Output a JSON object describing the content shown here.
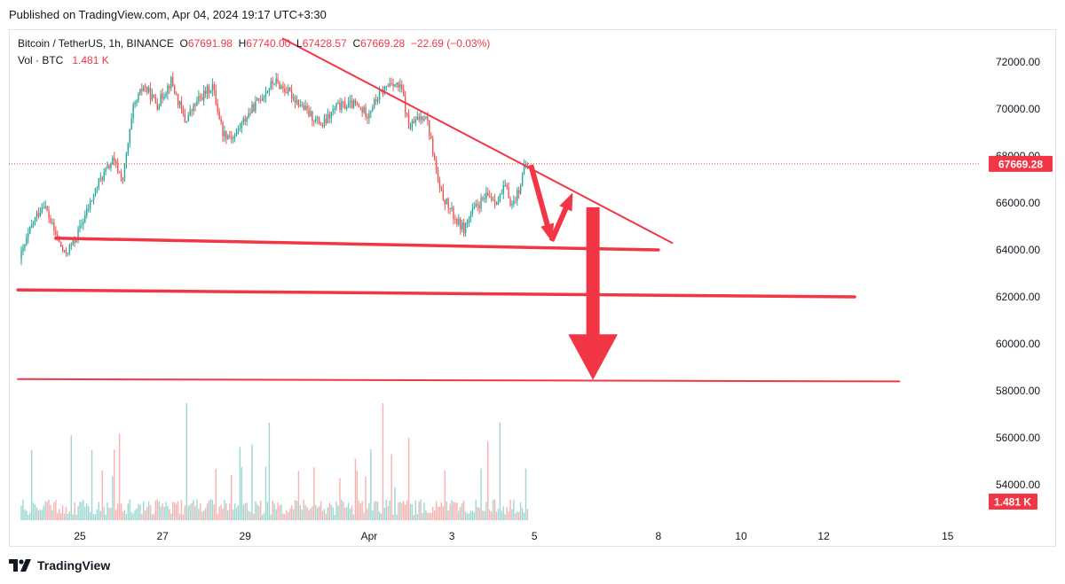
{
  "published": "Published on TradingView.com, Apr 04, 2024 19:17 UTC+3:30",
  "legend": {
    "symbol": "Bitcoin / TetherUS, 1h, BINANCE",
    "open_label": "O",
    "open": "67691.98",
    "high_label": "H",
    "high": "67740.00",
    "low_label": "L",
    "low": "67428.57",
    "close_label": "C",
    "close": "67669.28",
    "change": "−22.69 (−0.03%)",
    "vol_label": "Vol · BTC",
    "vol_value": "1.481 K"
  },
  "footer": {
    "brand": "TradingView"
  },
  "colors": {
    "up": "#26a69a",
    "down": "#ef5350",
    "drawing": "#f23645"
  },
  "chart_data": {
    "type": "candlestick",
    "symbol": "BTCUSDT",
    "interval": "1h",
    "exchange": "BINANCE",
    "ylim": [
      52000,
      73400
    ],
    "y_ticks": [
      "72000.00",
      "70000.00",
      "68000.00",
      "66000.00",
      "64000.00",
      "62000.00",
      "60000.00",
      "58000.00",
      "56000.00",
      "54000.00"
    ],
    "x_ticks": [
      "25",
      "27",
      "29",
      "Apr",
      "3",
      "5",
      "8",
      "10",
      "12",
      "15"
    ],
    "last_price": "67669.28",
    "last_volume": "1.481 K",
    "price_path": [
      {
        "date": "2024-03-23 14:00",
        "price": 63600
      },
      {
        "date": "2024-03-23 22:00",
        "price": 65200
      },
      {
        "date": "2024-03-24 04:00",
        "price": 66000
      },
      {
        "date": "2024-03-24 10:00",
        "price": 64800
      },
      {
        "date": "2024-03-24 16:00",
        "price": 63800
      },
      {
        "date": "2024-03-24 22:00",
        "price": 64400
      },
      {
        "date": "2024-03-25 06:00",
        "price": 65800
      },
      {
        "date": "2024-03-25 12:00",
        "price": 66900
      },
      {
        "date": "2024-03-25 20:00",
        "price": 67800
      },
      {
        "date": "2024-03-26 02:00",
        "price": 67000
      },
      {
        "date": "2024-03-26 08:00",
        "price": 70000
      },
      {
        "date": "2024-03-26 14:00",
        "price": 71000
      },
      {
        "date": "2024-03-26 22:00",
        "price": 70200
      },
      {
        "date": "2024-03-27 06:00",
        "price": 71200
      },
      {
        "date": "2024-03-27 14:00",
        "price": 69500
      },
      {
        "date": "2024-03-27 22:00",
        "price": 70400
      },
      {
        "date": "2024-03-28 06:00",
        "price": 71000
      },
      {
        "date": "2024-03-28 12:00",
        "price": 69000
      },
      {
        "date": "2024-03-28 18:00",
        "price": 68800
      },
      {
        "date": "2024-03-29 02:00",
        "price": 69700
      },
      {
        "date": "2024-03-29 10:00",
        "price": 70500
      },
      {
        "date": "2024-03-29 18:00",
        "price": 71200
      },
      {
        "date": "2024-03-30 04:00",
        "price": 70600
      },
      {
        "date": "2024-03-30 14:00",
        "price": 69800
      },
      {
        "date": "2024-03-30 22:00",
        "price": 69300
      },
      {
        "date": "2024-03-31 06:00",
        "price": 70100
      },
      {
        "date": "2024-03-31 16:00",
        "price": 70200
      },
      {
        "date": "2024-04-01 00:00",
        "price": 69800
      },
      {
        "date": "2024-04-01 06:00",
        "price": 70500
      },
      {
        "date": "2024-04-01 14:00",
        "price": 71200
      },
      {
        "date": "2024-04-01 20:00",
        "price": 70800
      },
      {
        "date": "2024-04-02 00:00",
        "price": 69200
      },
      {
        "date": "2024-04-02 06:00",
        "price": 69600
      },
      {
        "date": "2024-04-02 10:00",
        "price": 69800
      },
      {
        "date": "2024-04-02 14:00",
        "price": 68200
      },
      {
        "date": "2024-04-02 18:00",
        "price": 66500
      },
      {
        "date": "2024-04-02 22:00",
        "price": 66000
      },
      {
        "date": "2024-04-03 04:00",
        "price": 65200
      },
      {
        "date": "2024-04-03 08:00",
        "price": 64900
      },
      {
        "date": "2024-04-03 12:00",
        "price": 65500
      },
      {
        "date": "2024-04-03 16:00",
        "price": 65900
      },
      {
        "date": "2024-04-03 22:00",
        "price": 66300
      },
      {
        "date": "2024-04-04 04:00",
        "price": 66100
      },
      {
        "date": "2024-04-04 08:00",
        "price": 66700
      },
      {
        "date": "2024-04-04 12:00",
        "price": 65900
      },
      {
        "date": "2024-04-04 16:00",
        "price": 66600
      },
      {
        "date": "2024-04-04 20:00",
        "price": 67669.28
      }
    ],
    "drawings": {
      "downtrend_line": {
        "from": {
          "date": "2024-03-29 22:00",
          "price": 73000
        },
        "to": {
          "date": "2024-04-08 08:00",
          "price": 64300
        }
      },
      "support_lines": [
        {
          "from": {
            "date": "2024-03-24 10:00",
            "price": 64500
          },
          "to": {
            "date": "2024-04-08 00:00",
            "price": 64000
          }
        },
        {
          "from": {
            "date": "2024-03-23 12:00",
            "price": 62300
          },
          "to": {
            "date": "2024-04-12 18:00",
            "price": 62000
          }
        },
        {
          "from": {
            "date": "2024-03-23 12:00",
            "price": 58500
          },
          "to": {
            "date": "2024-04-13 20:00",
            "price": 58400
          }
        }
      ],
      "arrows": [
        {
          "from": {
            "date": "2024-04-04 22:00",
            "price": 67600
          },
          "to": {
            "date": "2024-04-05 10:00",
            "price": 64400
          }
        },
        {
          "from": {
            "date": "2024-04-05 10:00",
            "price": 64400
          },
          "to": {
            "date": "2024-04-05 22:00",
            "price": 66400
          }
        },
        {
          "from": {
            "date": "2024-04-06 10:00",
            "price": 65800
          },
          "to": {
            "date": "2024-04-06 10:00",
            "price": 58500
          }
        }
      ]
    }
  }
}
